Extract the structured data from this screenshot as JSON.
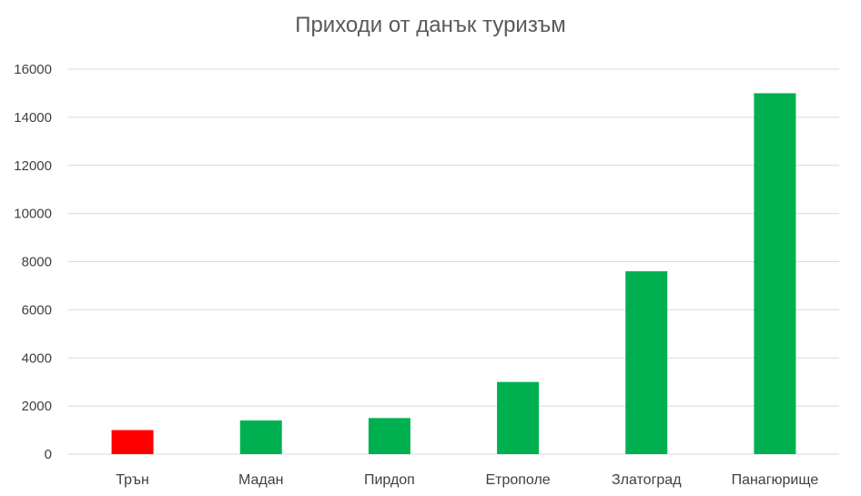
{
  "chart_data": {
    "type": "bar",
    "title": "Приходи от данък туризъм",
    "xlabel": "",
    "ylabel": "",
    "categories": [
      "Трън",
      "Мадан",
      "Пирдоп",
      "Етрополе",
      "Златоград",
      "Панагюрище"
    ],
    "values": [
      1000,
      1400,
      1500,
      3000,
      7600,
      15000
    ],
    "bar_colors": [
      "#ff0000",
      "#00b050",
      "#00b050",
      "#00b050",
      "#00b050",
      "#00b050"
    ],
    "ylim": [
      0,
      16000
    ],
    "yticks": [
      "0",
      "2000",
      "4000",
      "6000",
      "8000",
      "10000",
      "12000",
      "14000",
      "16000"
    ],
    "grid": true,
    "legend": "none",
    "colors": {
      "gridline": "#d9d9d9",
      "axis_text": "#404040",
      "title": "#595959"
    }
  }
}
